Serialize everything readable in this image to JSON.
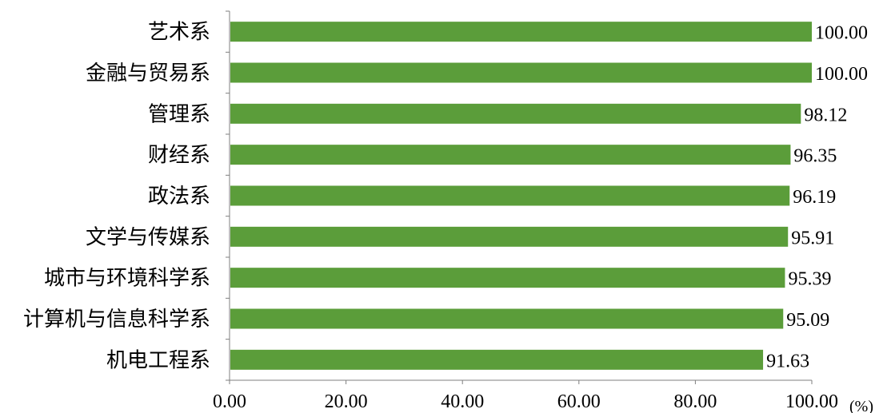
{
  "chart_data": {
    "type": "bar",
    "orientation": "horizontal",
    "categories": [
      "艺术系",
      "金融与贸易系",
      "管理系",
      "财经系",
      "政法系",
      "文学与传媒系",
      "城市与环境科学系",
      "计算机与信息科学系",
      "机电工程系"
    ],
    "values": [
      100.0,
      100.0,
      98.12,
      96.35,
      96.19,
      95.91,
      95.39,
      95.09,
      91.63
    ],
    "value_labels": [
      "100.00",
      "100.00",
      "98.12",
      "96.35",
      "96.19",
      "95.91",
      "95.39",
      "95.09",
      "91.63"
    ],
    "xlim": [
      0,
      100
    ],
    "x_ticks": [
      0,
      20,
      40,
      60,
      80,
      100
    ],
    "x_tick_labels": [
      "0.00",
      "20.00",
      "40.00",
      "60.00",
      "80.00",
      "100.00"
    ],
    "x_unit": "(%)",
    "grid": false,
    "legend": false,
    "bar_color": "#5b9d3a",
    "axis_color": "#7f7f7f"
  }
}
